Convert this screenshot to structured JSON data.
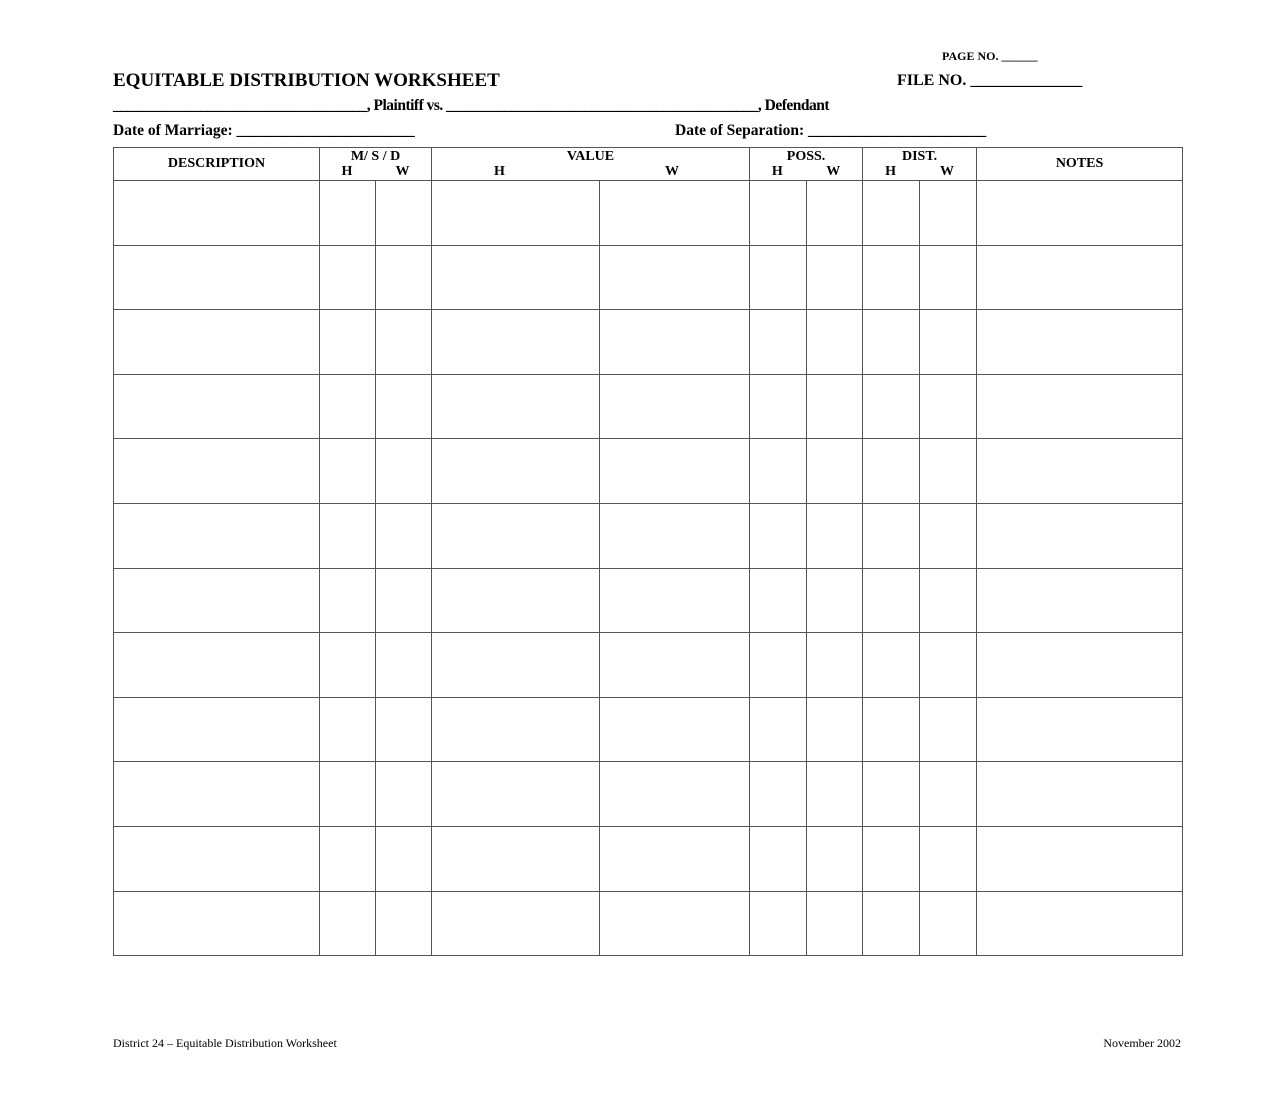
{
  "header": {
    "page_no": "PAGE NO. ______",
    "title": "EQUITABLE DISTRIBUTION WORKSHEET",
    "file_no": "FILE NO. ______________",
    "plaintiff_line": "___________________________________, Plaintiff vs. ___________________________________________, Defendant",
    "date_of_marriage": "Date of Marriage:  _______________________",
    "date_of_separation": "Date of Separation: _______________________"
  },
  "table": {
    "columns": {
      "description": "DESCRIPTION",
      "msd": "M/ S / D",
      "value": "VALUE",
      "poss": "POSS.",
      "dist": "DIST.",
      "notes": "NOTES",
      "h": "H",
      "w": "W"
    },
    "row_count": 12
  },
  "footer": {
    "left": "District 24 – Equitable Distribution Worksheet",
    "right": "November 2002"
  }
}
